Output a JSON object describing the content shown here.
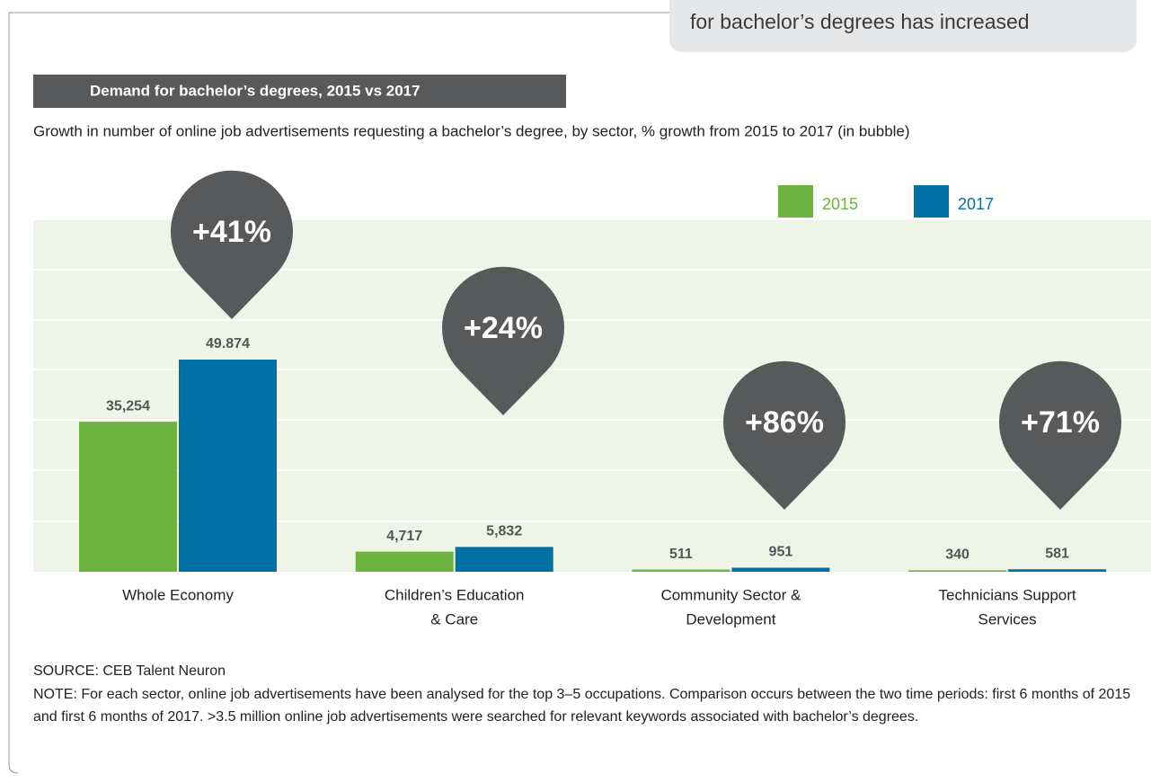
{
  "top_note": "for bachelor’s degrees has increased",
  "chart_data": {
    "type": "bar",
    "title": "Demand for bachelor’s degrees, 2015 vs 2017",
    "subtitle": "Growth in number of online job advertisements requesting a bachelor’s degree, by sector, % growth from 2015 to 2017 (in bubble)",
    "categories": [
      [
        "Whole Economy"
      ],
      [
        "Children’s Education",
        "& Care"
      ],
      [
        "Community Sector &",
        "Development"
      ],
      [
        "Technicians Support",
        "Services"
      ]
    ],
    "series": [
      {
        "name": "2015",
        "color": "#6db33f",
        "values": [
          35254,
          4717,
          511,
          340
        ],
        "value_labels": [
          "35,254",
          "4,717",
          "511",
          "340"
        ]
      },
      {
        "name": "2017",
        "color": "#0071a4",
        "values": [
          49874,
          5832,
          951,
          581
        ],
        "value_labels": [
          "49.874",
          "5,832",
          "951",
          "581"
        ]
      }
    ],
    "growth": {
      "color": "#58595b",
      "values": [
        41,
        24,
        86,
        71
      ],
      "value_labels": [
        "+41%",
        "+24%",
        "+86%",
        "+71%"
      ]
    },
    "source": "SOURCE: CEB Talent Neuron",
    "note": "NOTE: For each sector, online job advertisements have been analysed for the top 3–5 occupations. Comparison occurs between the two time periods: first 6 months of 2015 and first 6 months of 2017. >3.5 million online job advertisements were searched for relevant keywords associated with bachelor’s degrees."
  }
}
